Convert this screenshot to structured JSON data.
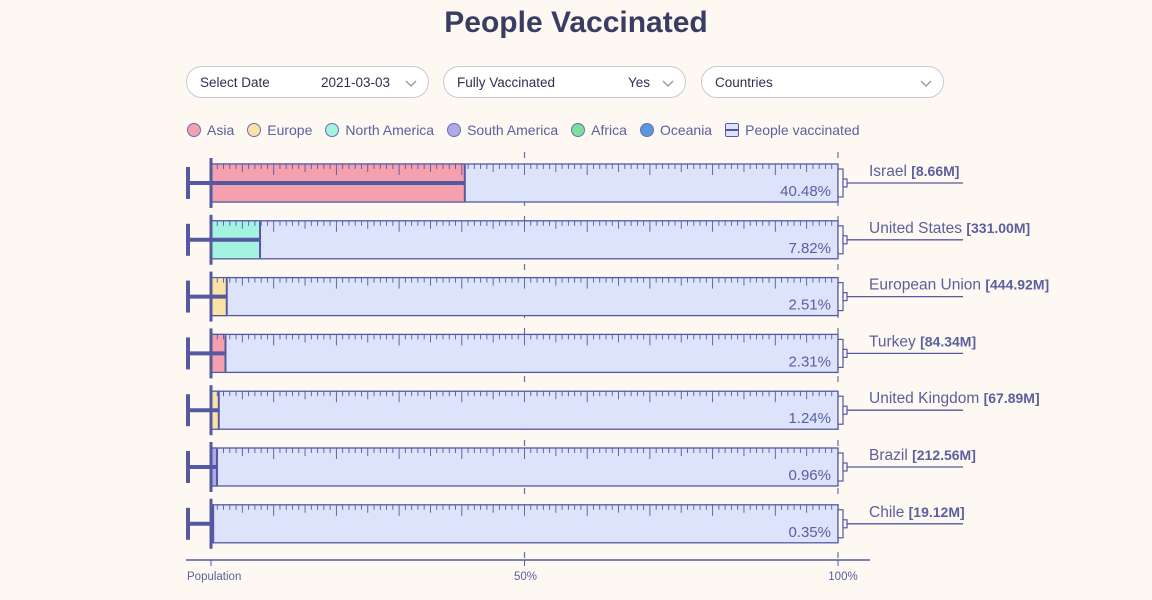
{
  "title": "People Vaccinated",
  "controls": {
    "date": {
      "label": "Select Date",
      "value": "2021-03-03"
    },
    "fully": {
      "label": "Fully Vaccinated",
      "value": "Yes"
    },
    "group": {
      "label": "Countries"
    }
  },
  "legend": [
    {
      "label": "Asia",
      "color": "#f4a0ae"
    },
    {
      "label": "Europe",
      "color": "#fbe3a6"
    },
    {
      "label": "North America",
      "color": "#a4f3e1"
    },
    {
      "label": "South America",
      "color": "#b0a9e8"
    },
    {
      "label": "Africa",
      "color": "#7ddf9d"
    },
    {
      "label": "Oceania",
      "color": "#5a98d9"
    },
    {
      "label": "People vaccinated",
      "color": "#dce3fb"
    }
  ],
  "colors": {
    "barFill": "#dce3fb",
    "stroke": "#5559a2",
    "text": "#5b5fa0"
  },
  "chart_data": {
    "type": "bar",
    "orientation": "horizontal",
    "x_axis": {
      "ticks": [
        "Population",
        "50%",
        "100%"
      ],
      "range": [
        0,
        100
      ]
    },
    "rows": [
      {
        "country": "Israel",
        "population": "[8.66M]",
        "percent": 40.48,
        "percent_label": "40.48%",
        "region": "Asia"
      },
      {
        "country": "United States",
        "population": "[331.00M]",
        "percent": 7.82,
        "percent_label": "7.82%",
        "region": "North America"
      },
      {
        "country": "European Union",
        "population": "[444.92M]",
        "percent": 2.51,
        "percent_label": "2.51%",
        "region": "Europe"
      },
      {
        "country": "Turkey",
        "population": "[84.34M]",
        "percent": 2.31,
        "percent_label": "2.31%",
        "region": "Asia"
      },
      {
        "country": "United Kingdom",
        "population": "[67.89M]",
        "percent": 1.24,
        "percent_label": "1.24%",
        "region": "Europe"
      },
      {
        "country": "Brazil",
        "population": "[212.56M]",
        "percent": 0.96,
        "percent_label": "0.96%",
        "region": "South America"
      },
      {
        "country": "Chile",
        "population": "[19.12M]",
        "percent": 0.35,
        "percent_label": "0.35%",
        "region": "South America"
      }
    ]
  }
}
